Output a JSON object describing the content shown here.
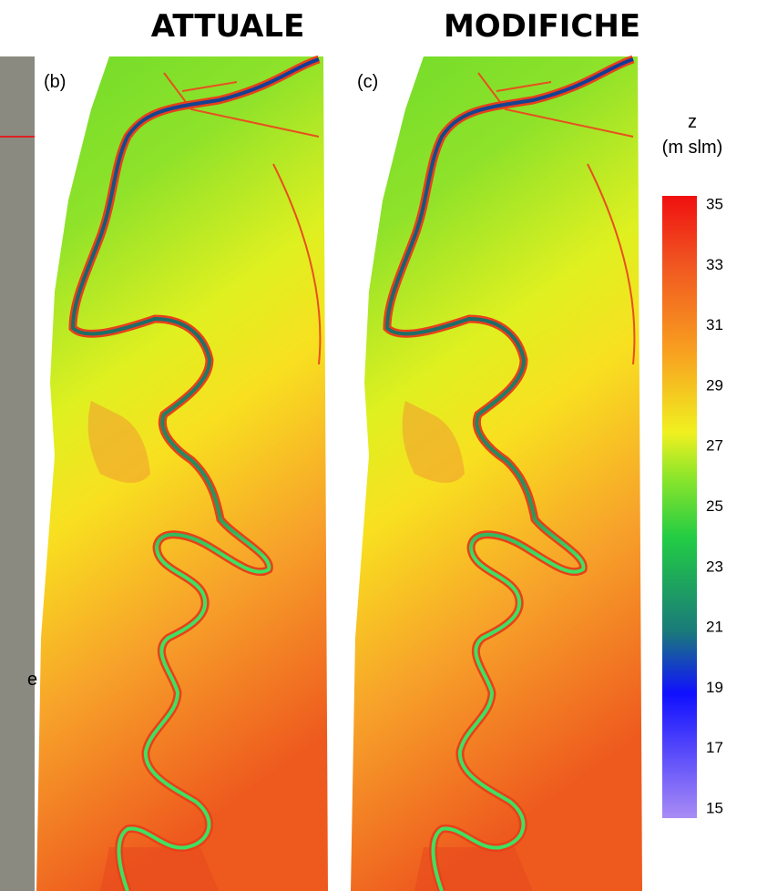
{
  "header": {
    "titles": [
      "ATTUALE",
      "MODIFICHE"
    ]
  },
  "panels": [
    {
      "label": "(b)"
    },
    {
      "label": "(c)"
    }
  ],
  "left_fragment_text": "e",
  "legend": {
    "title": [
      "z",
      "(m slm)"
    ],
    "range": [
      15,
      35
    ],
    "ticks": [
      35,
      33,
      31,
      29,
      27,
      25,
      23,
      21,
      19,
      17,
      15
    ]
  }
}
